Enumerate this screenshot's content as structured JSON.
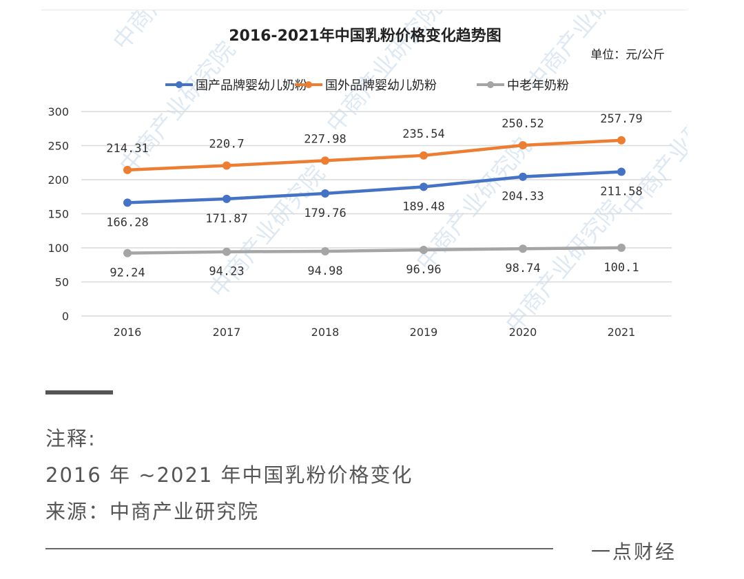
{
  "chart": {
    "title": "2016-2021年中国乳粉价格变化趋势图",
    "unit_label": "单位：元/公斤",
    "watermark": "中商产业研究院"
  },
  "chart_data": {
    "type": "line",
    "title": "2016-2021年中国乳粉价格变化趋势图",
    "unit": "单位：元/公斤",
    "xlabel": "",
    "ylabel": "元/公斤",
    "categories": [
      "2016",
      "2017",
      "2018",
      "2019",
      "2020",
      "2021"
    ],
    "y_ticks": [
      0,
      50,
      100,
      150,
      200,
      250,
      300
    ],
    "ylim": [
      0,
      300
    ],
    "grid": true,
    "legend_position": "top",
    "series": [
      {
        "name": "国产品牌婴幼儿奶粉",
        "color": "#4472c4",
        "values": [
          166.28,
          171.87,
          179.76,
          189.48,
          204.33,
          211.58
        ],
        "labels": [
          "166.28",
          "171.87",
          "179.76",
          "189.48",
          "204.33",
          "211.58"
        ],
        "label_position": "below"
      },
      {
        "name": "国外品牌婴幼儿奶粉",
        "color": "#ed7d31",
        "values": [
          214.31,
          220.7,
          227.98,
          235.54,
          250.52,
          257.79
        ],
        "labels": [
          "214.31",
          "220.7",
          "227.98",
          "235.54",
          "250.52",
          "257.79"
        ],
        "label_position": "above"
      },
      {
        "name": "中老年奶粉",
        "color": "#a5a5a5",
        "values": [
          92.24,
          94.23,
          94.98,
          96.96,
          98.74,
          100.1
        ],
        "labels": [
          "92.24",
          "94.23",
          "94.98",
          "96.96",
          "98.74",
          "100.1"
        ],
        "label_position": "below"
      }
    ]
  },
  "notes": {
    "heading": "注释:",
    "description": "2016 年 ~2021 年中国乳粉价格变化",
    "source": "来源：中商产业研究院"
  },
  "footer": {
    "brand": "一点财经"
  }
}
